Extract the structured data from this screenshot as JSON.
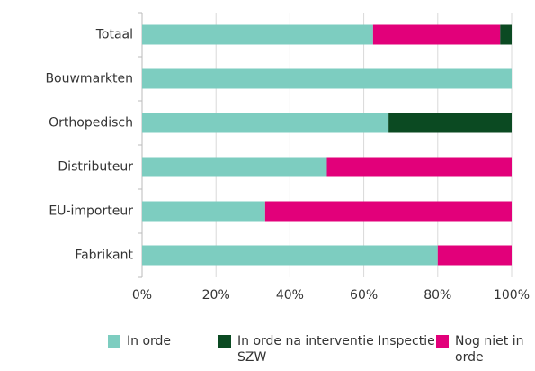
{
  "chart_data": {
    "type": "stacked_barh",
    "categories": [
      "Totaal",
      "Bouwmarkten",
      "Orthopedisch",
      "Distributeur",
      "EU-importeur",
      "Fabrikant"
    ],
    "series": [
      {
        "name": "In orde",
        "color": "#7dcdc0",
        "values": [
          62.5,
          100,
          66.7,
          50,
          33.3,
          80
        ]
      },
      {
        "name": "In orde na interventie Inspectie SZW",
        "color": "#0b4a22",
        "values": [
          3.1,
          0,
          33.3,
          0,
          0,
          0
        ]
      },
      {
        "name": "Nog niet in orde",
        "color": "#e2007a",
        "values": [
          34.4,
          0,
          0,
          50,
          66.7,
          20
        ]
      }
    ],
    "xlim": [
      0,
      100
    ],
    "xticks": [
      {
        "value": 0,
        "label": "0%"
      },
      {
        "value": 20,
        "label": "20%"
      },
      {
        "value": 40,
        "label": "40%"
      },
      {
        "value": 60,
        "label": "60%"
      },
      {
        "value": 80,
        "label": "80%"
      },
      {
        "value": 100,
        "label": "100%"
      }
    ],
    "grid": true,
    "legend": "bottom"
  }
}
